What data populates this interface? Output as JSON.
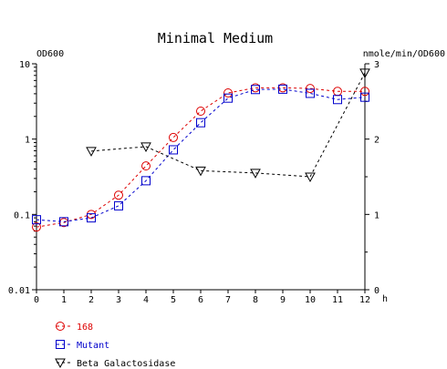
{
  "chart_data": {
    "type": "line",
    "title": "Minimal Medium",
    "xlabel": "h",
    "ylabel_left": "OD600",
    "ylabel_right": "nmole/min/OD600",
    "x_ticks": [
      "0",
      "1",
      "2",
      "3",
      "4",
      "5",
      "6",
      "7",
      "8",
      "9",
      "10",
      "11",
      "12"
    ],
    "y_left_scale": "log",
    "y_left_ticks": [
      "0.01",
      "0.1",
      "1",
      "10"
    ],
    "y_left_lim": [
      0.01,
      10
    ],
    "y_right_ticks": [
      "0",
      "1",
      "2",
      "3"
    ],
    "y_right_lim": [
      0,
      3
    ],
    "grid": false,
    "legend_position": "bottom-left",
    "series": [
      {
        "name": "168",
        "axis": "left",
        "marker": "circle",
        "color": "#dd0000",
        "dash": true,
        "x": [
          0,
          1,
          2,
          3,
          4,
          5,
          6,
          7,
          8,
          9,
          10,
          11,
          12
        ],
        "y": [
          0.068,
          0.078,
          0.1,
          0.18,
          0.44,
          1.05,
          2.35,
          4.1,
          4.8,
          4.8,
          4.7,
          4.3,
          4.3
        ]
      },
      {
        "name": "Mutant",
        "axis": "left",
        "marker": "square",
        "color": "#0000cc",
        "dash": true,
        "x": [
          0,
          1,
          2,
          3,
          4,
          5,
          6,
          7,
          8,
          9,
          10,
          11,
          12
        ],
        "y": [
          0.085,
          0.08,
          0.09,
          0.13,
          0.28,
          0.72,
          1.65,
          3.5,
          4.55,
          4.6,
          4.05,
          3.35,
          3.6
        ]
      },
      {
        "name": "Beta Galactosidase",
        "axis": "right",
        "marker": "triangle-down",
        "color": "#000000",
        "dash": true,
        "x": [
          2,
          4,
          6,
          8,
          10,
          12
        ],
        "y": [
          1.84,
          1.9,
          1.58,
          1.55,
          1.5,
          2.88
        ]
      }
    ]
  }
}
